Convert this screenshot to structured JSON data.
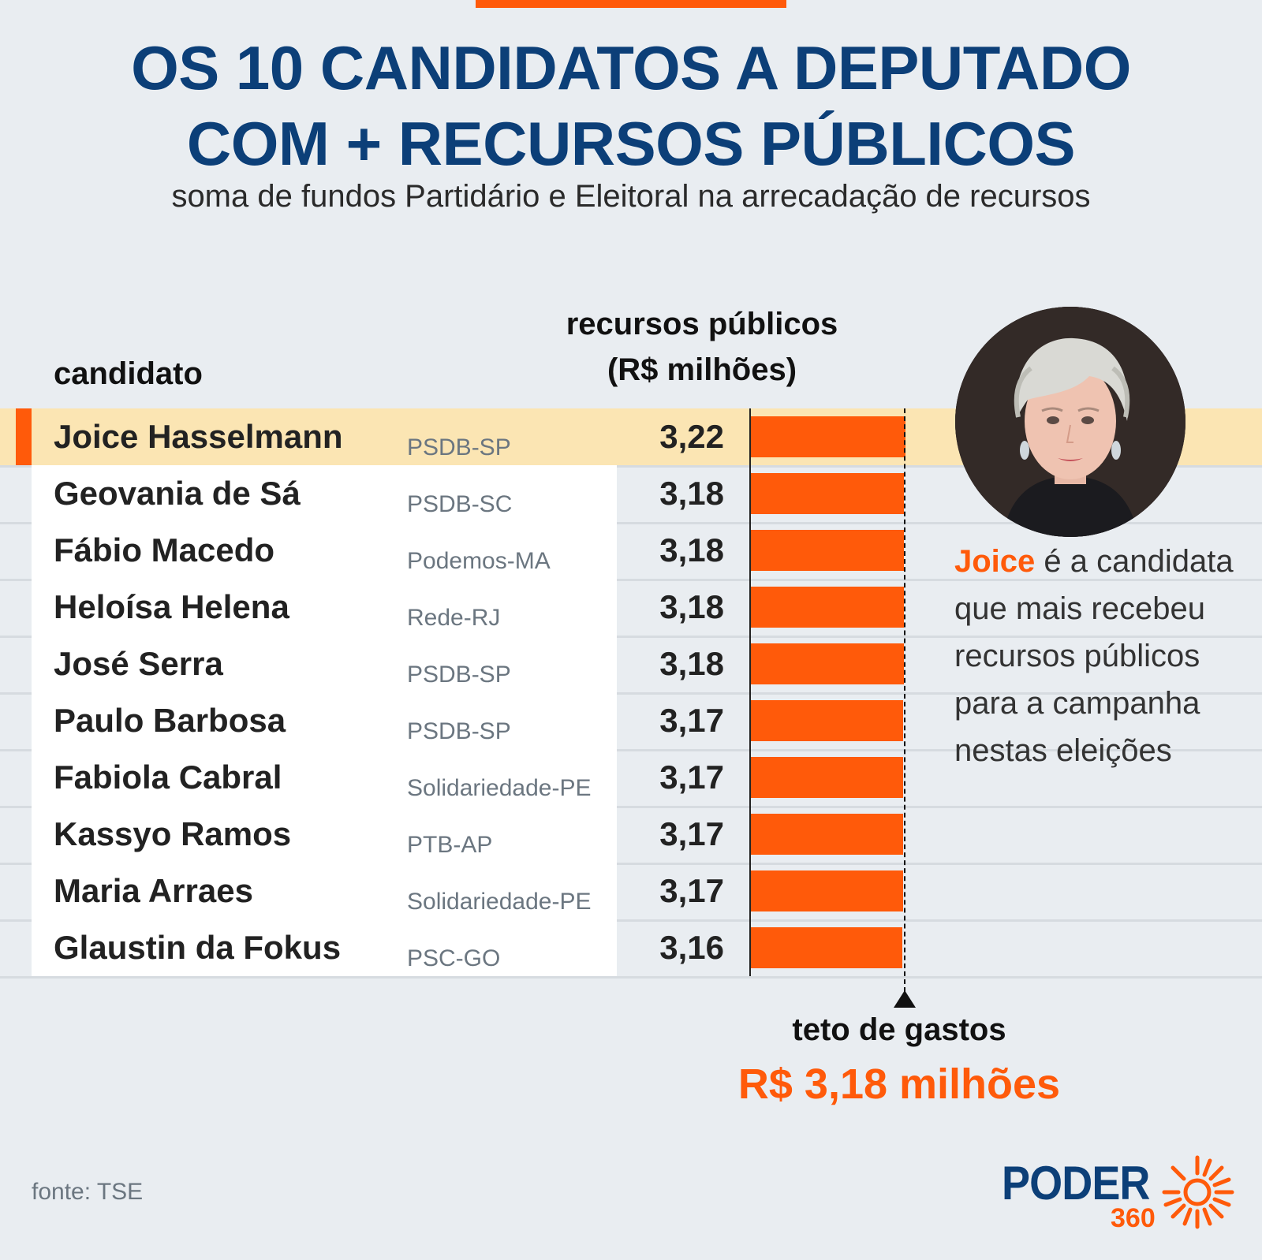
{
  "title_lines": [
    "OS 10 CANDIDATOS A DEPUTADO",
    "COM + RECURSOS PÚBLICOS"
  ],
  "subtitle": "soma de fundos Partidário e Eleitoral na arrecadação de recursos",
  "colors": {
    "title": "#0c3f78",
    "accent": "#ff5a0a",
    "highlight_row": "#fbe5b3",
    "background": "#e9edf1"
  },
  "chart_data": {
    "type": "bar",
    "column_header_candidate": "candidato",
    "column_header_value_lines": [
      "recursos públicos",
      "(R$ milhões)"
    ],
    "xlim": [
      0,
      3.22
    ],
    "rows": [
      {
        "name": "Joice Hasselmann",
        "party": "PSDB-SP",
        "value": 3.22,
        "label": "3,22",
        "highlight": true
      },
      {
        "name": "Geovania de Sá",
        "party": "PSDB-SC",
        "value": 3.18,
        "label": "3,18"
      },
      {
        "name": "Fábio Macedo",
        "party": "Podemos-MA",
        "value": 3.18,
        "label": "3,18"
      },
      {
        "name": "Heloísa Helena",
        "party": "Rede-RJ",
        "value": 3.18,
        "label": "3,18"
      },
      {
        "name": "José Serra",
        "party": "PSDB-SP",
        "value": 3.18,
        "label": "3,18"
      },
      {
        "name": "Paulo Barbosa",
        "party": "PSDB-SP",
        "value": 3.17,
        "label": "3,17"
      },
      {
        "name": "Fabiola Cabral",
        "party": "Solidariedade-PE",
        "value": 3.17,
        "label": "3,17"
      },
      {
        "name": "Kassyo Ramos",
        "party": "PTB-AP",
        "value": 3.17,
        "label": "3,17"
      },
      {
        "name": "Maria Arraes",
        "party": "Solidariedade-PE",
        "value": 3.17,
        "label": "3,17"
      },
      {
        "name": "Glaustin da Fokus",
        "party": "PSC-GO",
        "value": 3.16,
        "label": "3,16"
      }
    ],
    "reference_line": {
      "value": 3.18,
      "label": "teto de gastos",
      "value_label": "R$ 3,18 milhões"
    }
  },
  "annotation": {
    "highlight": "Joice",
    "rest": " é a candidata que mais recebeu recursos públicos para a campanha nestas eleições"
  },
  "source": "fonte: TSE",
  "logo": {
    "word": "PODER",
    "number": "360"
  }
}
